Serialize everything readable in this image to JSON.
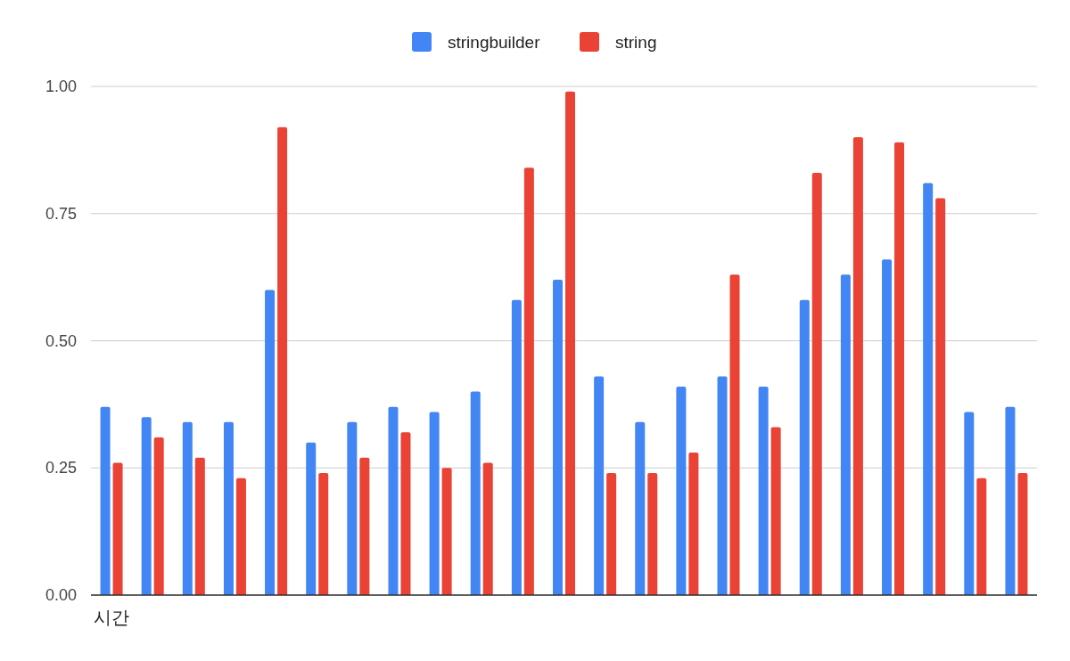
{
  "chart_data": {
    "type": "bar",
    "categories": [
      "시간",
      null,
      null,
      null,
      null,
      null,
      null,
      null,
      null,
      null,
      null,
      null,
      null,
      null,
      null,
      null,
      null,
      null,
      null,
      null,
      null,
      null,
      null
    ],
    "series": [
      {
        "name": "stringbuilder",
        "color": "#4285f4",
        "values": [
          0.37,
          0.35,
          0.34,
          0.34,
          0.6,
          0.3,
          0.34,
          0.37,
          0.36,
          0.4,
          0.58,
          0.62,
          0.43,
          0.34,
          0.41,
          0.43,
          0.41,
          0.58,
          0.63,
          0.66,
          0.81,
          0.36,
          0.37
        ]
      },
      {
        "name": "string",
        "color": "#ea4335",
        "values": [
          0.26,
          0.31,
          0.27,
          0.23,
          0.92,
          0.24,
          0.27,
          0.32,
          0.25,
          0.26,
          0.84,
          0.99,
          0.24,
          0.24,
          0.28,
          0.63,
          0.33,
          0.83,
          0.9,
          0.89,
          0.78,
          0.23,
          0.24
        ]
      }
    ],
    "ylim": [
      0,
      1
    ],
    "yticks": [
      {
        "value": 0,
        "label": "0.00"
      },
      {
        "value": 0.25,
        "label": "0.25"
      },
      {
        "value": 0.5,
        "label": "0.50"
      },
      {
        "value": 0.75,
        "label": "0.75"
      },
      {
        "value": 1,
        "label": "1.00"
      }
    ],
    "grid": "y",
    "legend": "top"
  }
}
